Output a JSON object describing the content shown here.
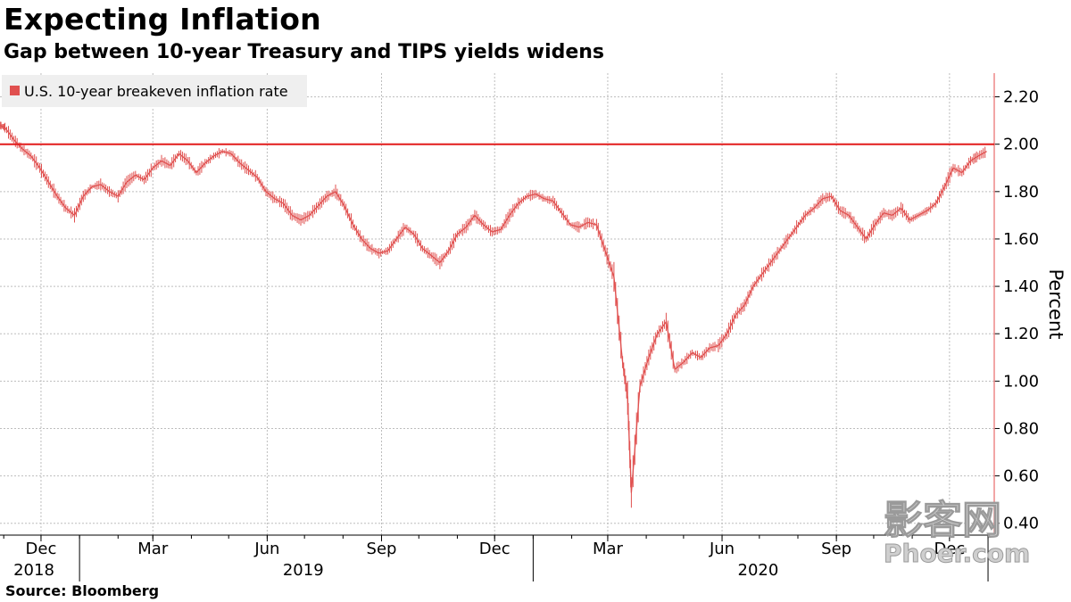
{
  "header": {
    "title": "Expecting Inflation",
    "subtitle": "Gap between 10-year Treasury and TIPS yields widens"
  },
  "footer": {
    "source": "Source: Bloomberg"
  },
  "watermark": {
    "line1": "影客网",
    "line2": "Phoer.com"
  },
  "colors": {
    "series": "#e0504f",
    "reference_line": "#e21b1b",
    "grid": "#bdbdbd",
    "legend_bg": "#efefef"
  },
  "chart_data": {
    "type": "line",
    "title": "Expecting Inflation",
    "subtitle": "Gap between 10-year Treasury and TIPS yields widens",
    "ylabel": "Percent",
    "ylim": [
      0.35,
      2.3
    ],
    "yticks": [
      0.4,
      0.6,
      0.8,
      1.0,
      1.2,
      1.4,
      1.6,
      1.8,
      2.0,
      2.2
    ],
    "ytick_labels": [
      "0.40",
      "0.60",
      "0.80",
      "1.00",
      "1.20",
      "1.40",
      "1.60",
      "1.80",
      "2.00",
      "2.20"
    ],
    "xlim": [
      "2018-10-29",
      "2021-01-06"
    ],
    "xticks": [
      {
        "label": "Dec",
        "date": "2018-12-01"
      },
      {
        "label": "Mar",
        "date": "2019-03-01"
      },
      {
        "label": "Jun",
        "date": "2019-06-01"
      },
      {
        "label": "Sep",
        "date": "2019-09-01"
      },
      {
        "label": "Dec",
        "date": "2019-12-01"
      },
      {
        "label": "Mar",
        "date": "2020-03-01"
      },
      {
        "label": "Jun",
        "date": "2020-06-01"
      },
      {
        "label": "Sep",
        "date": "2020-09-01"
      },
      {
        "label": "Dec",
        "date": "2020-12-01"
      }
    ],
    "year_labels": [
      {
        "label": "2018",
        "date": "2018-11-15"
      },
      {
        "label": "2019",
        "date": "2019-06-30"
      },
      {
        "label": "2020",
        "date": "2020-06-30"
      }
    ],
    "year_boundaries": [
      "2019-01-01",
      "2020-01-01",
      "2021-01-01"
    ],
    "reference_line": {
      "y": 2.0
    },
    "grid": true,
    "legend_position": "top-left",
    "series": [
      {
        "name": "U.S. 10-year breakeven inflation rate",
        "x": [
          "2018-10-29",
          "2018-11-02",
          "2018-11-09",
          "2018-11-16",
          "2018-11-23",
          "2018-11-30",
          "2018-12-07",
          "2018-12-14",
          "2018-12-21",
          "2018-12-28",
          "2019-01-04",
          "2019-01-11",
          "2019-01-18",
          "2019-01-25",
          "2019-02-01",
          "2019-02-08",
          "2019-02-15",
          "2019-02-22",
          "2019-03-01",
          "2019-03-08",
          "2019-03-15",
          "2019-03-22",
          "2019-03-29",
          "2019-04-05",
          "2019-04-12",
          "2019-04-19",
          "2019-04-26",
          "2019-05-03",
          "2019-05-10",
          "2019-05-17",
          "2019-05-24",
          "2019-05-31",
          "2019-06-07",
          "2019-06-14",
          "2019-06-21",
          "2019-06-28",
          "2019-07-05",
          "2019-07-12",
          "2019-07-19",
          "2019-07-26",
          "2019-08-02",
          "2019-08-09",
          "2019-08-16",
          "2019-08-23",
          "2019-08-30",
          "2019-09-06",
          "2019-09-13",
          "2019-09-20",
          "2019-09-27",
          "2019-10-04",
          "2019-10-11",
          "2019-10-18",
          "2019-10-25",
          "2019-11-01",
          "2019-11-08",
          "2019-11-15",
          "2019-11-22",
          "2019-11-29",
          "2019-12-06",
          "2019-12-13",
          "2019-12-20",
          "2019-12-27",
          "2020-01-03",
          "2020-01-10",
          "2020-01-17",
          "2020-01-24",
          "2020-01-31",
          "2020-02-07",
          "2020-02-14",
          "2020-02-21",
          "2020-02-28",
          "2020-03-06",
          "2020-03-13",
          "2020-03-17",
          "2020-03-20",
          "2020-03-27",
          "2020-04-03",
          "2020-04-10",
          "2020-04-17",
          "2020-04-24",
          "2020-05-01",
          "2020-05-08",
          "2020-05-15",
          "2020-05-22",
          "2020-05-29",
          "2020-06-05",
          "2020-06-12",
          "2020-06-19",
          "2020-06-26",
          "2020-07-03",
          "2020-07-10",
          "2020-07-17",
          "2020-07-24",
          "2020-07-31",
          "2020-08-07",
          "2020-08-14",
          "2020-08-21",
          "2020-08-28",
          "2020-09-04",
          "2020-09-11",
          "2020-09-18",
          "2020-09-25",
          "2020-10-02",
          "2020-10-09",
          "2020-10-16",
          "2020-10-23",
          "2020-10-30",
          "2020-11-06",
          "2020-11-13",
          "2020-11-20",
          "2020-11-27",
          "2020-12-04",
          "2020-12-11",
          "2020-12-18",
          "2020-12-24",
          "2020-12-31"
        ],
        "y": [
          2.08,
          2.07,
          2.02,
          1.98,
          1.95,
          1.9,
          1.84,
          1.78,
          1.73,
          1.7,
          1.78,
          1.82,
          1.83,
          1.8,
          1.78,
          1.84,
          1.87,
          1.85,
          1.9,
          1.93,
          1.91,
          1.96,
          1.93,
          1.88,
          1.92,
          1.95,
          1.97,
          1.96,
          1.92,
          1.89,
          1.86,
          1.8,
          1.77,
          1.75,
          1.7,
          1.68,
          1.7,
          1.74,
          1.78,
          1.8,
          1.74,
          1.66,
          1.6,
          1.56,
          1.54,
          1.55,
          1.6,
          1.65,
          1.62,
          1.56,
          1.53,
          1.5,
          1.55,
          1.62,
          1.65,
          1.7,
          1.66,
          1.63,
          1.64,
          1.7,
          1.75,
          1.78,
          1.79,
          1.77,
          1.76,
          1.71,
          1.66,
          1.65,
          1.67,
          1.66,
          1.55,
          1.44,
          1.08,
          0.93,
          0.53,
          0.98,
          1.1,
          1.2,
          1.25,
          1.05,
          1.08,
          1.12,
          1.1,
          1.14,
          1.15,
          1.2,
          1.28,
          1.32,
          1.4,
          1.45,
          1.5,
          1.55,
          1.6,
          1.65,
          1.7,
          1.73,
          1.77,
          1.78,
          1.72,
          1.7,
          1.65,
          1.6,
          1.66,
          1.71,
          1.7,
          1.73,
          1.68,
          1.7,
          1.72,
          1.75,
          1.82,
          1.9,
          1.88,
          1.93,
          1.95,
          1.97
        ]
      }
    ]
  }
}
